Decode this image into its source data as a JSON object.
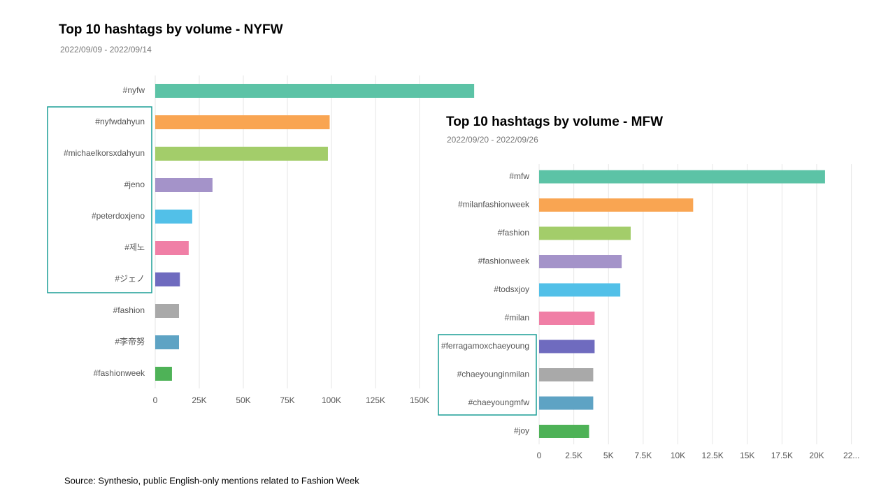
{
  "chart_data": [
    {
      "type": "bar",
      "orientation": "horizontal",
      "title": "Top 10 hashtags by volume - NYFW",
      "subtitle": "2022/09/09 - 2022/09/14",
      "categories": [
        "#nyfw",
        "#nyfwdahyun",
        "#michaelkorsxdahyun",
        "#jeno",
        "#peterdoxjeno",
        "#제노",
        "#ジェノ",
        "#fashion",
        "#李帝努",
        "#fashionweek"
      ],
      "values": [
        181000,
        99000,
        98000,
        32500,
        21000,
        19000,
        14000,
        13500,
        13500,
        9500
      ],
      "colors": [
        "#5cc3a6",
        "#f9a552",
        "#a3cd6a",
        "#a493c9",
        "#52c0e8",
        "#f07fa6",
        "#6f6bbf",
        "#a9a9a9",
        "#5ea3c4",
        "#4eb257"
      ],
      "xlim": [
        0,
        200000
      ],
      "xticks": [
        0,
        {
          "value": 25000,
          "label": "25K"
        },
        {
          "value": 50000,
          "label": "50K"
        },
        {
          "value": 75000,
          "label": "75K"
        },
        {
          "value": 100000,
          "label": "100K"
        },
        {
          "value": 125000,
          "label": "125K"
        },
        {
          "value": 150000,
          "label": "150K"
        }
      ],
      "grid": true
    },
    {
      "type": "bar",
      "orientation": "horizontal",
      "title": "Top 10 hashtags by volume - MFW",
      "subtitle": "2022/09/20 - 2022/09/26",
      "categories": [
        "#mfw",
        "#milanfashionweek",
        "#fashion",
        "#fashionweek",
        "#todsxjoy",
        "#milan",
        "#ferragamoxchaeyoung",
        "#chaeyounginmilan",
        "#chaeyoungmfw",
        "#joy"
      ],
      "values": [
        20600,
        11100,
        6600,
        5950,
        5850,
        4000,
        4000,
        3900,
        3900,
        3600
      ],
      "colors": [
        "#5cc3a6",
        "#f9a552",
        "#a3cd6a",
        "#a493c9",
        "#52c0e8",
        "#f07fa6",
        "#6f6bbf",
        "#a9a9a9",
        "#5ea3c4",
        "#4eb257"
      ],
      "xlim": [
        0,
        22500
      ],
      "xticks": [
        0,
        {
          "value": 2500,
          "label": "2.5K"
        },
        {
          "value": 5000,
          "label": "5K"
        },
        {
          "value": 7500,
          "label": "7.5K"
        },
        {
          "value": 10000,
          "label": "10K"
        },
        {
          "value": 12500,
          "label": "12.5K"
        },
        {
          "value": 15000,
          "label": "15K"
        },
        {
          "value": 17500,
          "label": "17.5K"
        },
        {
          "value": 20000,
          "label": "20K"
        },
        {
          "value": 22500,
          "label": "22..."
        }
      ],
      "grid": true
    }
  ],
  "source": "Source: Synthesio, public English-only mentions related to Fashion Week"
}
